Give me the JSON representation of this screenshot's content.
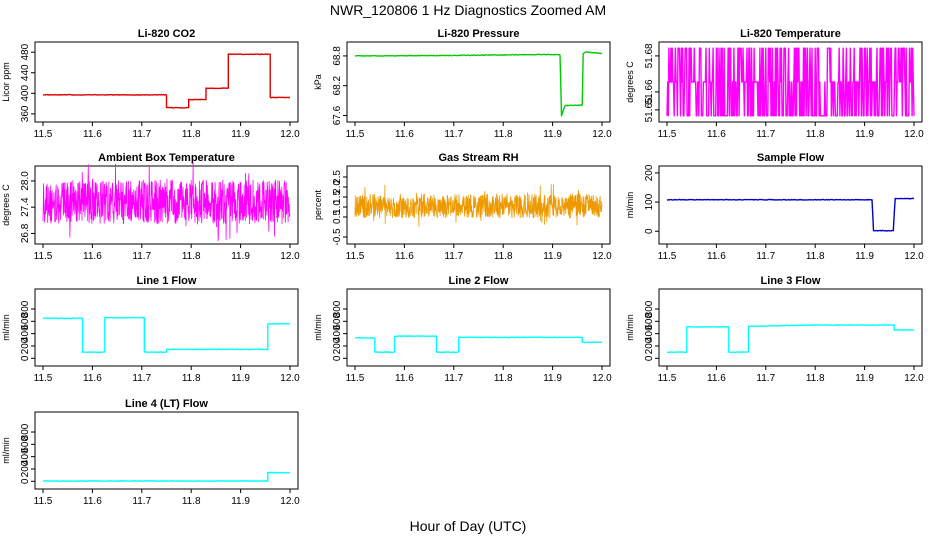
{
  "title": "NWR_120806  1 Hz Diagnostics Zoomed AM",
  "xlabel": "Hour of Day (UTC)",
  "colors": {
    "red": "#dd0000",
    "green": "#00cc00",
    "magenta": "#ff00ff",
    "orange": "#ee9900",
    "blue": "#0000cc",
    "cyan": "#00ffff"
  },
  "chart_data": [
    {
      "type": "line",
      "title": "Li-820 CO2",
      "ylabel": "Licor ppm",
      "xlim": [
        11.5,
        12.0
      ],
      "ylim": [
        352,
        492
      ],
      "xticks": [
        "11.5",
        "11.6",
        "11.7",
        "11.8",
        "11.9",
        "12.0"
      ],
      "yticks": [
        {
          "v": 360,
          "label": "360"
        },
        {
          "v": 400,
          "label": "400"
        },
        {
          "v": 440,
          "label": "440"
        },
        {
          "v": 480,
          "label": "480"
        }
      ],
      "color": "red",
      "x": [
        11.5,
        11.75,
        11.75,
        11.795,
        11.795,
        11.83,
        11.83,
        11.875,
        11.875,
        11.96,
        11.96,
        12.0
      ],
      "y": [
        397,
        397,
        372,
        372,
        388,
        388,
        410,
        410,
        476,
        476,
        392,
        392
      ]
    },
    {
      "type": "line",
      "title": "Li-820 Pressure",
      "ylabel": "kPa",
      "xlim": [
        11.5,
        12.0
      ],
      "ylim": [
        67.55,
        69.0
      ],
      "xticks": [
        "11.5",
        "11.6",
        "11.7",
        "11.8",
        "11.9",
        "12.0"
      ],
      "yticks": [
        {
          "v": 67.6,
          "label": "67.6"
        },
        {
          "v": 68.2,
          "label": "68.2"
        },
        {
          "v": 68.8,
          "label": "68.8"
        }
      ],
      "color": "green",
      "x": [
        11.5,
        11.7,
        11.9,
        11.915,
        11.918,
        11.925,
        11.96,
        11.962,
        11.968,
        12.0
      ],
      "y": [
        68.8,
        68.81,
        68.83,
        68.82,
        67.6,
        67.8,
        67.81,
        68.85,
        68.88,
        68.85
      ]
    },
    {
      "type": "line",
      "title": "Li-820 Temperature",
      "ylabel": "degrees C",
      "xlim": [
        11.5,
        12.0
      ],
      "ylim": [
        51.6455,
        51.6855
      ],
      "xticks": [
        "11.5",
        "11.6",
        "11.7",
        "11.8",
        "11.9",
        "12.0"
      ],
      "yticks": [
        {
          "v": 51.65,
          "label": "51.65"
        },
        {
          "v": 51.66,
          "label": "51.66"
        },
        {
          "v": 51.68,
          "label": "51.68"
        }
      ],
      "color": "magenta",
      "levels": [
        51.6467,
        51.6655,
        51.6843
      ],
      "noise": true
    },
    {
      "type": "line",
      "title": "Ambient Box Temperature",
      "ylabel": "degrees C",
      "xlim": [
        11.5,
        12.0
      ],
      "ylim": [
        26.65,
        28.25
      ],
      "xticks": [
        "11.5",
        "11.6",
        "11.7",
        "11.8",
        "11.9",
        "12.0"
      ],
      "yticks": [
        {
          "v": 26.8,
          "label": "26.8"
        },
        {
          "v": 27.4,
          "label": "27.4"
        },
        {
          "v": 28.0,
          "label": "28.0"
        }
      ],
      "color": "magenta",
      "mean": 27.52,
      "amplitude": 0.5,
      "noise": true
    },
    {
      "type": "line",
      "title": "Gas Stream RH",
      "ylabel": "percent",
      "xlim": [
        11.5,
        12.0
      ],
      "ylim": [
        -0.65,
        2.85
      ],
      "xticks": [
        "11.5",
        "11.6",
        "11.7",
        "11.8",
        "11.9",
        "12.0"
      ],
      "yticks": [
        {
          "v": -0.5,
          "label": "-0.5"
        },
        {
          "v": 0.5,
          "label": "0.5"
        },
        {
          "v": 1.0,
          "label": "1.0"
        },
        {
          "v": 1.5,
          "label": "1.5"
        },
        {
          "v": 2.0,
          "label": "2.0"
        },
        {
          "v": 2.5,
          "label": "2.5"
        }
      ],
      "color": "orange",
      "mean": 1.05,
      "amplitude": 0.6,
      "noise": true
    },
    {
      "type": "line",
      "title": "Sample Flow",
      "ylabel": "ml/min",
      "xlim": [
        11.5,
        12.0
      ],
      "ylim": [
        -30,
        210
      ],
      "xticks": [
        "11.5",
        "11.6",
        "11.7",
        "11.8",
        "11.9",
        "12.0"
      ],
      "yticks": [
        {
          "v": 0,
          "label": "0"
        },
        {
          "v": 100,
          "label": "100"
        },
        {
          "v": 200,
          "label": "200"
        }
      ],
      "color": "blue",
      "x": [
        11.5,
        11.915,
        11.918,
        11.958,
        11.962,
        12.0
      ],
      "y": [
        108,
        108,
        2,
        2,
        112,
        112
      ]
    },
    {
      "type": "line",
      "title": "Line 1 Flow",
      "ylabel": "ml/min",
      "xlim": [
        11.5,
        12.0
      ],
      "ylim": [
        -60,
        1060
      ],
      "xticks": [
        "11.5",
        "11.6",
        "11.7",
        "11.8",
        "11.9",
        "12.0"
      ],
      "yticks": [
        {
          "v": 0,
          "label": "0"
        },
        {
          "v": 200,
          "label": "200"
        },
        {
          "v": 400,
          "label": "400"
        },
        {
          "v": 600,
          "label": "600"
        },
        {
          "v": 800,
          "label": "800"
        }
      ],
      "color": "cyan",
      "x": [
        11.5,
        11.58,
        11.58,
        11.625,
        11.625,
        11.705,
        11.705,
        11.75,
        11.75,
        11.955,
        11.955,
        12.0
      ],
      "y": [
        650,
        650,
        100,
        100,
        660,
        660,
        100,
        100,
        145,
        145,
        560,
        560
      ]
    },
    {
      "type": "line",
      "title": "Line 2 Flow",
      "ylabel": "ml/min",
      "xlim": [
        11.5,
        12.0
      ],
      "ylim": [
        -60,
        1060
      ],
      "xticks": [
        "11.5",
        "11.6",
        "11.7",
        "11.8",
        "11.9",
        "12.0"
      ],
      "yticks": [
        {
          "v": 0,
          "label": "0"
        },
        {
          "v": 200,
          "label": "200"
        },
        {
          "v": 400,
          "label": "400"
        },
        {
          "v": 600,
          "label": "600"
        },
        {
          "v": 800,
          "label": "800"
        }
      ],
      "color": "cyan",
      "x": [
        11.5,
        11.54,
        11.54,
        11.58,
        11.58,
        11.665,
        11.665,
        11.71,
        11.71,
        11.96,
        11.96,
        12.0
      ],
      "y": [
        330,
        330,
        100,
        100,
        360,
        360,
        100,
        100,
        340,
        340,
        260,
        260
      ]
    },
    {
      "type": "line",
      "title": "Line 3 Flow",
      "ylabel": "ml/min",
      "xlim": [
        11.5,
        12.0
      ],
      "ylim": [
        -60,
        1060
      ],
      "xticks": [
        "11.5",
        "11.6",
        "11.7",
        "11.8",
        "11.9",
        "12.0"
      ],
      "yticks": [
        {
          "v": 0,
          "label": "0"
        },
        {
          "v": 200,
          "label": "200"
        },
        {
          "v": 400,
          "label": "400"
        },
        {
          "v": 600,
          "label": "600"
        },
        {
          "v": 800,
          "label": "800"
        }
      ],
      "color": "cyan",
      "x": [
        11.5,
        11.54,
        11.54,
        11.625,
        11.625,
        11.665,
        11.665,
        11.8,
        11.96,
        11.96,
        12.0
      ],
      "y": [
        100,
        100,
        510,
        510,
        100,
        100,
        520,
        540,
        540,
        460,
        460
      ]
    },
    {
      "type": "line",
      "title": "Line 4 (LT) Flow",
      "ylabel": "ml/min",
      "xlim": [
        11.5,
        12.0
      ],
      "ylim": [
        -60,
        1060
      ],
      "xticks": [
        "11.5",
        "11.6",
        "11.7",
        "11.8",
        "11.9",
        "12.0"
      ],
      "yticks": [
        {
          "v": 0,
          "label": "0"
        },
        {
          "v": 200,
          "label": "200"
        },
        {
          "v": 400,
          "label": "400"
        },
        {
          "v": 600,
          "label": "600"
        },
        {
          "v": 800,
          "label": "800"
        }
      ],
      "color": "cyan",
      "x": [
        11.5,
        11.955,
        11.955,
        12.0
      ],
      "y": [
        5,
        5,
        140,
        140
      ]
    }
  ]
}
